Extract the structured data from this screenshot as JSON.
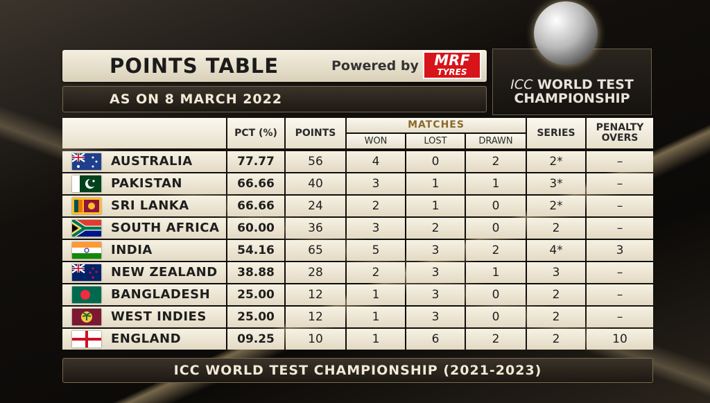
{
  "header": {
    "title": "POINTS TABLE",
    "powered_by": "Powered by",
    "sponsor": {
      "name": "MRF",
      "tagline": "TYRES"
    },
    "date": "AS ON 8 MARCH 2022"
  },
  "logo": {
    "prefix": "ICC",
    "line1": "WORLD TEST",
    "line2": "CHAMPIONSHIP"
  },
  "table": {
    "group": "MATCHES",
    "columns": [
      "PCT (%)",
      "POINTS",
      "WON",
      "LOST",
      "DRAWN",
      "SERIES",
      "PENALTY OVERS"
    ],
    "rows": [
      [
        "AUSTRALIA",
        "77.77",
        "56",
        "4",
        "0",
        "2",
        "2*",
        "–"
      ],
      [
        "PAKISTAN",
        "66.66",
        "40",
        "3",
        "1",
        "1",
        "3*",
        "–"
      ],
      [
        "SRI LANKA",
        "66.66",
        "24",
        "2",
        "1",
        "0",
        "2*",
        "–"
      ],
      [
        "SOUTH AFRICA",
        "60.00",
        "36",
        "3",
        "2",
        "0",
        "2",
        "–"
      ],
      [
        "INDIA",
        "54.16",
        "65",
        "5",
        "3",
        "2",
        "4*",
        "3"
      ],
      [
        "NEW ZEALAND",
        "38.88",
        "28",
        "2",
        "3",
        "1",
        "3",
        "–"
      ],
      [
        "BANGLADESH",
        "25.00",
        "12",
        "1",
        "3",
        "0",
        "2",
        "–"
      ],
      [
        "WEST INDIES",
        "25.00",
        "12",
        "1",
        "3",
        "0",
        "2",
        "–"
      ],
      [
        "ENGLAND",
        "09.25",
        "10",
        "1",
        "6",
        "2",
        "2",
        "10"
      ]
    ]
  },
  "footer": "ICC WORLD TEST CHAMPIONSHIP (2021-2023)"
}
